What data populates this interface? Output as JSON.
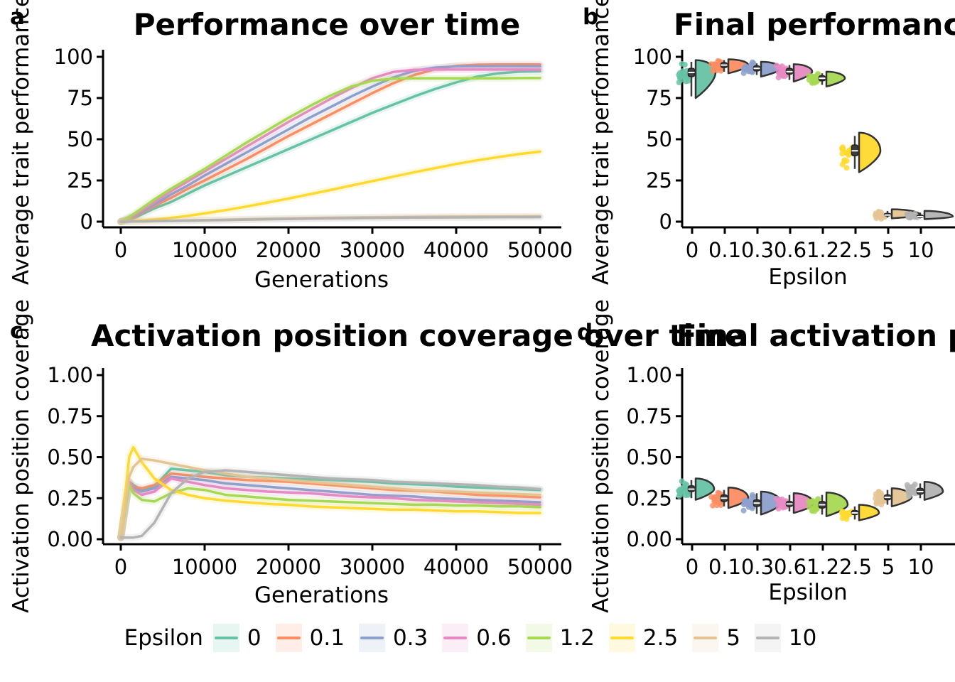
{
  "figure": {
    "background": "#ffffff"
  },
  "palette": {
    "eps0": "#66c2a5",
    "eps01": "#fc8d62",
    "eps03": "#8da0cb",
    "eps06": "#e78ac3",
    "eps12": "#a6d854",
    "eps25": "#ffd92f",
    "eps5": "#e5c494",
    "eps10": "#b3b3b3",
    "box": "#3d3d3d",
    "violin_stroke": "#333333",
    "spine": "#000000"
  },
  "panels": {
    "a": {
      "letter": "a",
      "title": "Performance over time",
      "xlabel": "Generations",
      "ylabel": "Average trait performance"
    },
    "b": {
      "letter": "b",
      "title": "Final performance",
      "xlabel": "Epsilon",
      "ylabel": "Average trait performance"
    },
    "c": {
      "letter": "c",
      "title": "Activation position coverage over time",
      "xlabel": "Generations",
      "ylabel": "Activation position coverage"
    },
    "d": {
      "letter": "d",
      "title": "Final activation position coverage",
      "xlabel": "Epsilon",
      "ylabel": "Activation position coverage"
    }
  },
  "legend": {
    "title": "Epsilon",
    "entries": [
      {
        "label": "0",
        "color": "#66c2a5"
      },
      {
        "label": "0.1",
        "color": "#fc8d62"
      },
      {
        "label": "0.3",
        "color": "#8da0cb"
      },
      {
        "label": "0.6",
        "color": "#e78ac3"
      },
      {
        "label": "1.2",
        "color": "#a6d854"
      },
      {
        "label": "2.5",
        "color": "#ffd92f"
      },
      {
        "label": "5",
        "color": "#e5c494"
      },
      {
        "label": "10",
        "color": "#b3b3b3"
      }
    ]
  },
  "chart_data": [
    {
      "id": "a",
      "type": "line",
      "title": "Performance over time",
      "xlabel": "Generations",
      "ylabel": "Average trait performance",
      "xlim": [
        0,
        50000
      ],
      "ylim": [
        0,
        100
      ],
      "xticks": {
        "values": [
          0,
          10000,
          20000,
          30000,
          40000,
          50000
        ],
        "labels": [
          "0",
          "10000",
          "20000",
          "30000",
          "40000",
          "50000"
        ]
      },
      "yticks": {
        "values": [
          0,
          25,
          50,
          75,
          100
        ],
        "labels": [
          "0",
          "25",
          "50",
          "75",
          "100"
        ]
      },
      "x": [
        0,
        1000,
        1500,
        2500,
        4000,
        6000,
        8000,
        10000,
        12500,
        15000,
        17500,
        20000,
        22500,
        25000,
        27500,
        30000,
        32500,
        35000,
        37500,
        40000,
        42500,
        45000,
        47500,
        50000
      ],
      "series": [
        {
          "name": "0",
          "color": "#66c2a5",
          "values": [
            0,
            1,
            2,
            4.5,
            8,
            12,
            17,
            22,
            27.5,
            33,
            38.5,
            44,
            49.5,
            55,
            60.5,
            66,
            71,
            76,
            80.5,
            84.5,
            88,
            90,
            91,
            91.3
          ]
        },
        {
          "name": "0.1",
          "color": "#fc8d62",
          "values": [
            0,
            1.5,
            2.5,
            5.5,
            9.5,
            14.5,
            20,
            25,
            31.5,
            38,
            45,
            52,
            58.5,
            65,
            71.5,
            78,
            84,
            89,
            92.5,
            94.5,
            95.2,
            95.4,
            95.4,
            95.4
          ]
        },
        {
          "name": "0.3",
          "color": "#8da0cb",
          "values": [
            0,
            2,
            3,
            6,
            10.5,
            16.5,
            22,
            28,
            35,
            42,
            49,
            56,
            63,
            69.5,
            76,
            82,
            87.5,
            91.5,
            93.5,
            94.2,
            94.3,
            94.3,
            94.3,
            94.3
          ]
        },
        {
          "name": "0.6",
          "color": "#e78ac3",
          "values": [
            0,
            2.5,
            3.5,
            7,
            12,
            18.5,
            24.5,
            30.5,
            38,
            45.5,
            53,
            60.5,
            67.5,
            74.5,
            81,
            87,
            90.8,
            92.1,
            92.3,
            92.3,
            92.3,
            92.3,
            92.3,
            92.3
          ]
        },
        {
          "name": "1.2",
          "color": "#a6d854",
          "values": [
            0,
            3,
            4.5,
            8,
            13.5,
            20,
            26,
            32,
            40,
            48,
            55.5,
            63,
            70,
            76.5,
            82,
            85.5,
            86.8,
            87,
            87,
            87,
            87,
            87,
            87.1,
            87.2
          ]
        },
        {
          "name": "2.5",
          "color": "#ffd92f",
          "values": [
            0,
            0.2,
            0.3,
            0.7,
            1.3,
            2.3,
            3.5,
            5,
            7,
            9.2,
            11.6,
            14,
            16.6,
            19.2,
            21.9,
            24.6,
            27.3,
            30,
            32.5,
            35,
            37.2,
            39.2,
            41,
            42.5
          ]
        },
        {
          "name": "5",
          "color": "#e5c494",
          "values": [
            0,
            0.05,
            0.1,
            0.2,
            0.35,
            0.55,
            0.75,
            1,
            1.25,
            1.5,
            1.75,
            2,
            2.2,
            2.4,
            2.55,
            2.7,
            2.8,
            2.9,
            3,
            3.05,
            3.1,
            3.15,
            3.2,
            3.25
          ]
        },
        {
          "name": "10",
          "color": "#b3b3b3",
          "values": [
            0,
            0.05,
            0.1,
            0.15,
            0.3,
            0.45,
            0.6,
            0.8,
            1,
            1.25,
            1.45,
            1.65,
            1.85,
            2,
            2.15,
            2.3,
            2.4,
            2.5,
            2.55,
            2.6,
            2.65,
            2.7,
            2.75,
            2.8
          ]
        }
      ]
    },
    {
      "id": "b",
      "type": "raincloud",
      "title": "Final performance",
      "xlabel": "Epsilon",
      "ylabel": "Average trait performance",
      "ylim": [
        0,
        100
      ],
      "yticks": {
        "values": [
          0,
          25,
          50,
          75,
          100
        ],
        "labels": [
          "0",
          "25",
          "50",
          "75",
          "100"
        ]
      },
      "categories": [
        "0",
        "0.1",
        "0.3",
        "0.6",
        "1.2",
        "2.5",
        "5",
        "10"
      ],
      "stats": [
        {
          "label": "0",
          "color": "#66c2a5",
          "median": 90.5,
          "q1": 88,
          "q3": 93,
          "lo": 76,
          "hi": 97,
          "vlo": 75,
          "vhi": 98,
          "vw": 28
        },
        {
          "label": "0.1",
          "color": "#fc8d62",
          "median": 95,
          "q1": 93.5,
          "q3": 96.5,
          "lo": 91,
          "hi": 98,
          "vlo": 90,
          "vhi": 98.5,
          "vw": 28
        },
        {
          "label": "0.3",
          "color": "#8da0cb",
          "median": 93,
          "q1": 91.5,
          "q3": 94.5,
          "lo": 89,
          "hi": 96,
          "vlo": 88,
          "vhi": 97,
          "vw": 28
        },
        {
          "label": "0.6",
          "color": "#e78ac3",
          "median": 91,
          "q1": 89.5,
          "q3": 93,
          "lo": 86,
          "hi": 95,
          "vlo": 85,
          "vhi": 95.5,
          "vw": 26
        },
        {
          "label": "1.2",
          "color": "#a6d854",
          "median": 87,
          "q1": 85.5,
          "q3": 88.5,
          "lo": 83,
          "hi": 90,
          "vlo": 82,
          "vhi": 91,
          "vw": 26
        },
        {
          "label": "2.5",
          "color": "#ffd92f",
          "median": 43,
          "q1": 40,
          "q3": 46.5,
          "lo": 32,
          "hi": 52,
          "vlo": 30,
          "vhi": 54,
          "vw": 30
        },
        {
          "label": "5",
          "color": "#e5c494",
          "median": 4,
          "q1": 3.5,
          "q3": 5,
          "lo": 2.5,
          "hi": 6.5,
          "vlo": 2,
          "vhi": 7.5,
          "vw": 40
        },
        {
          "label": "10",
          "color": "#b3b3b3",
          "median": 3,
          "q1": 2.5,
          "q3": 4,
          "lo": 2,
          "hi": 5.5,
          "vlo": 1.5,
          "vhi": 6.5,
          "vw": 40
        }
      ]
    },
    {
      "id": "c",
      "type": "line",
      "title": "Activation position coverage over time",
      "xlabel": "Generations",
      "ylabel": "Activation position coverage",
      "xlim": [
        0,
        50000
      ],
      "ylim": [
        0,
        1
      ],
      "xticks": {
        "values": [
          0,
          10000,
          20000,
          30000,
          40000,
          50000
        ],
        "labels": [
          "0",
          "10000",
          "20000",
          "30000",
          "40000",
          "50000"
        ]
      },
      "yticks": {
        "values": [
          0,
          0.25,
          0.5,
          0.75,
          1
        ],
        "labels": [
          "0.00",
          "0.25",
          "0.50",
          "0.75",
          "1.00"
        ]
      },
      "x": [
        0,
        1000,
        1500,
        2500,
        4000,
        6000,
        8000,
        10000,
        12500,
        15000,
        17500,
        20000,
        22500,
        25000,
        27500,
        30000,
        32500,
        35000,
        37500,
        40000,
        42500,
        45000,
        47500,
        50000
      ],
      "series": [
        {
          "name": "0",
          "color": "#66c2a5",
          "values": [
            0.01,
            0.35,
            0.33,
            0.3,
            0.32,
            0.43,
            0.42,
            0.41,
            0.39,
            0.38,
            0.375,
            0.37,
            0.365,
            0.36,
            0.355,
            0.35,
            0.34,
            0.335,
            0.33,
            0.32,
            0.315,
            0.31,
            0.305,
            0.3
          ]
        },
        {
          "name": "0.1",
          "color": "#fc8d62",
          "values": [
            0.01,
            0.35,
            0.32,
            0.31,
            0.33,
            0.4,
            0.39,
            0.38,
            0.37,
            0.36,
            0.355,
            0.35,
            0.34,
            0.33,
            0.32,
            0.31,
            0.3,
            0.295,
            0.29,
            0.28,
            0.27,
            0.265,
            0.26,
            0.255
          ]
        },
        {
          "name": "0.3",
          "color": "#8da0cb",
          "values": [
            0.01,
            0.34,
            0.31,
            0.29,
            0.31,
            0.38,
            0.37,
            0.36,
            0.34,
            0.33,
            0.32,
            0.31,
            0.3,
            0.29,
            0.28,
            0.27,
            0.265,
            0.26,
            0.25,
            0.245,
            0.24,
            0.235,
            0.23,
            0.225
          ]
        },
        {
          "name": "0.6",
          "color": "#e78ac3",
          "values": [
            0.01,
            0.35,
            0.3,
            0.27,
            0.29,
            0.37,
            0.35,
            0.33,
            0.31,
            0.3,
            0.29,
            0.285,
            0.28,
            0.27,
            0.26,
            0.255,
            0.25,
            0.24,
            0.235,
            0.23,
            0.225,
            0.22,
            0.215,
            0.21
          ]
        },
        {
          "name": "1.2",
          "color": "#a6d854",
          "values": [
            0.01,
            0.33,
            0.28,
            0.24,
            0.23,
            0.28,
            0.31,
            0.3,
            0.27,
            0.26,
            0.25,
            0.24,
            0.235,
            0.23,
            0.225,
            0.22,
            0.215,
            0.21,
            0.21,
            0.205,
            0.205,
            0.2,
            0.2,
            0.195
          ]
        },
        {
          "name": "2.5",
          "color": "#ffd92f",
          "values": [
            0.01,
            0.5,
            0.56,
            0.47,
            0.37,
            0.3,
            0.27,
            0.25,
            0.235,
            0.225,
            0.215,
            0.21,
            0.2,
            0.195,
            0.19,
            0.185,
            0.18,
            0.18,
            0.175,
            0.17,
            0.17,
            0.165,
            0.16,
            0.16
          ]
        },
        {
          "name": "5",
          "color": "#e5c494",
          "values": [
            0.01,
            0.38,
            0.44,
            0.49,
            0.48,
            0.46,
            0.44,
            0.42,
            0.4,
            0.38,
            0.37,
            0.36,
            0.35,
            0.34,
            0.33,
            0.32,
            0.31,
            0.3,
            0.295,
            0.29,
            0.285,
            0.28,
            0.275,
            0.27
          ]
        },
        {
          "name": "10",
          "color": "#b3b3b3",
          "values": [
            0.01,
            0.01,
            0.01,
            0.02,
            0.1,
            0.28,
            0.37,
            0.41,
            0.42,
            0.41,
            0.4,
            0.39,
            0.38,
            0.37,
            0.365,
            0.36,
            0.35,
            0.345,
            0.34,
            0.335,
            0.33,
            0.32,
            0.315,
            0.305
          ]
        }
      ]
    },
    {
      "id": "d",
      "type": "raincloud",
      "title": "Final activation position coverage",
      "xlabel": "Epsilon",
      "ylabel": "Activation position coverage",
      "ylim": [
        0,
        1
      ],
      "yticks": {
        "values": [
          0,
          0.25,
          0.5,
          0.75,
          1
        ],
        "labels": [
          "0.00",
          "0.25",
          "0.50",
          "0.75",
          "1.00"
        ]
      },
      "categories": [
        "0",
        "0.1",
        "0.3",
        "0.6",
        "1.2",
        "2.5",
        "5",
        "10"
      ],
      "stats": [
        {
          "label": "0",
          "color": "#66c2a5",
          "median": 0.305,
          "q1": 0.29,
          "q3": 0.325,
          "lo": 0.25,
          "hi": 0.36,
          "vlo": 0.24,
          "vhi": 0.37,
          "vw": 26
        },
        {
          "label": "0.1",
          "color": "#fc8d62",
          "median": 0.25,
          "q1": 0.23,
          "q3": 0.27,
          "lo": 0.2,
          "hi": 0.3,
          "vlo": 0.19,
          "vhi": 0.315,
          "vw": 28
        },
        {
          "label": "0.3",
          "color": "#8da0cb",
          "median": 0.22,
          "q1": 0.2,
          "q3": 0.24,
          "lo": 0.155,
          "hi": 0.28,
          "vlo": 0.15,
          "vhi": 0.29,
          "vw": 28
        },
        {
          "label": "0.6",
          "color": "#e78ac3",
          "median": 0.215,
          "q1": 0.2,
          "q3": 0.23,
          "lo": 0.17,
          "hi": 0.27,
          "vlo": 0.16,
          "vhi": 0.28,
          "vw": 28
        },
        {
          "label": "1.2",
          "color": "#a6d854",
          "median": 0.21,
          "q1": 0.19,
          "q3": 0.23,
          "lo": 0.15,
          "hi": 0.27,
          "vlo": 0.14,
          "vhi": 0.285,
          "vw": 30
        },
        {
          "label": "2.5",
          "color": "#ffd92f",
          "median": 0.16,
          "q1": 0.15,
          "q3": 0.175,
          "lo": 0.12,
          "hi": 0.2,
          "vlo": 0.115,
          "vhi": 0.21,
          "vw": 28
        },
        {
          "label": "5",
          "color": "#e5c494",
          "median": 0.255,
          "q1": 0.24,
          "q3": 0.27,
          "lo": 0.21,
          "hi": 0.3,
          "vlo": 0.2,
          "vhi": 0.31,
          "vw": 28
        },
        {
          "label": "10",
          "color": "#b3b3b3",
          "median": 0.29,
          "q1": 0.275,
          "q3": 0.31,
          "lo": 0.25,
          "hi": 0.34,
          "vlo": 0.24,
          "vhi": 0.35,
          "vw": 26
        }
      ]
    }
  ]
}
